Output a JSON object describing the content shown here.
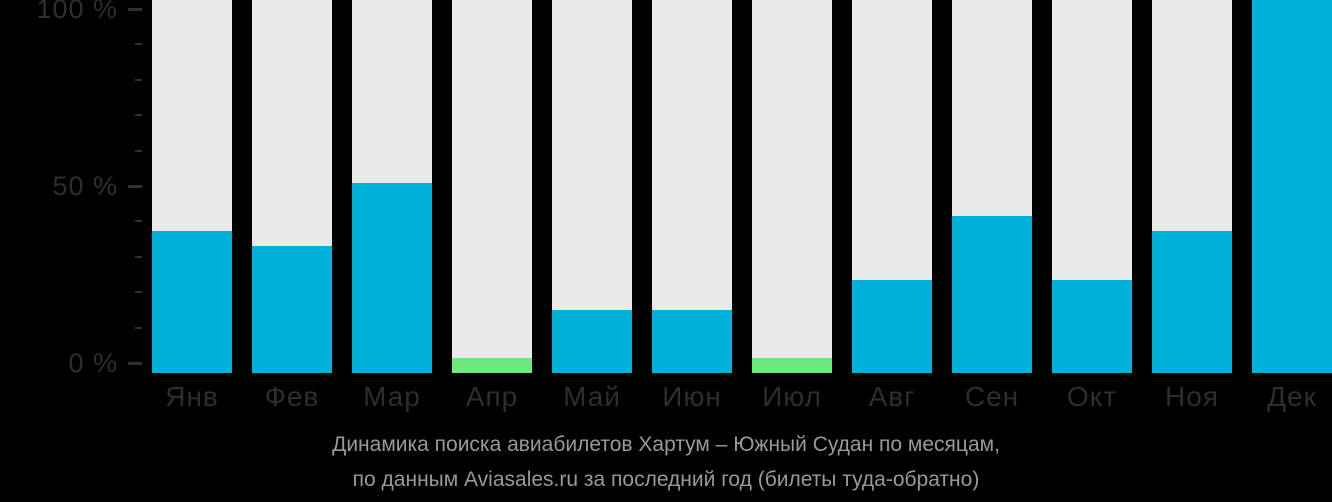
{
  "background_color": "#000000",
  "chart_data": {
    "type": "bar",
    "title": "Динамика поиска авиабилетов Хартум – Южный Судан по месяцам,",
    "subtitle": "по данным Aviasales.ru за последний год (билеты туда-обратно)",
    "categories": [
      "Янв",
      "Фев",
      "Мар",
      "Апр",
      "Май",
      "Июн",
      "Июл",
      "Авг",
      "Сен",
      "Окт",
      "Ноя",
      "Дек"
    ],
    "values": [
      38,
      34,
      51,
      4,
      17,
      17,
      4,
      25,
      42,
      25,
      38,
      100
    ],
    "bar_colors": [
      "#00b1d9",
      "#00b1d9",
      "#00b1d9",
      "#6ee97e",
      "#00b1d9",
      "#00b1d9",
      "#6ee97e",
      "#00b1d9",
      "#00b1d9",
      "#00b1d9",
      "#00b1d9",
      "#00b1d9"
    ],
    "track_color": "#e9e9e9",
    "xlabel": "",
    "ylabel": "",
    "ylim": [
      0,
      100
    ],
    "grid": false,
    "legend": "none",
    "y_ticks": [
      {
        "value": 100,
        "label": "100 %"
      },
      {
        "value": 50,
        "label": "50 %"
      },
      {
        "value": 0,
        "label": "0 %"
      }
    ],
    "minor_tick_step_percent": 10,
    "accent_colors": {
      "primary_bar": "#00b1d9",
      "secondary_bar": "#6ee97e",
      "axis_text": "#2e2e2e",
      "caption_text": "#999999"
    }
  }
}
